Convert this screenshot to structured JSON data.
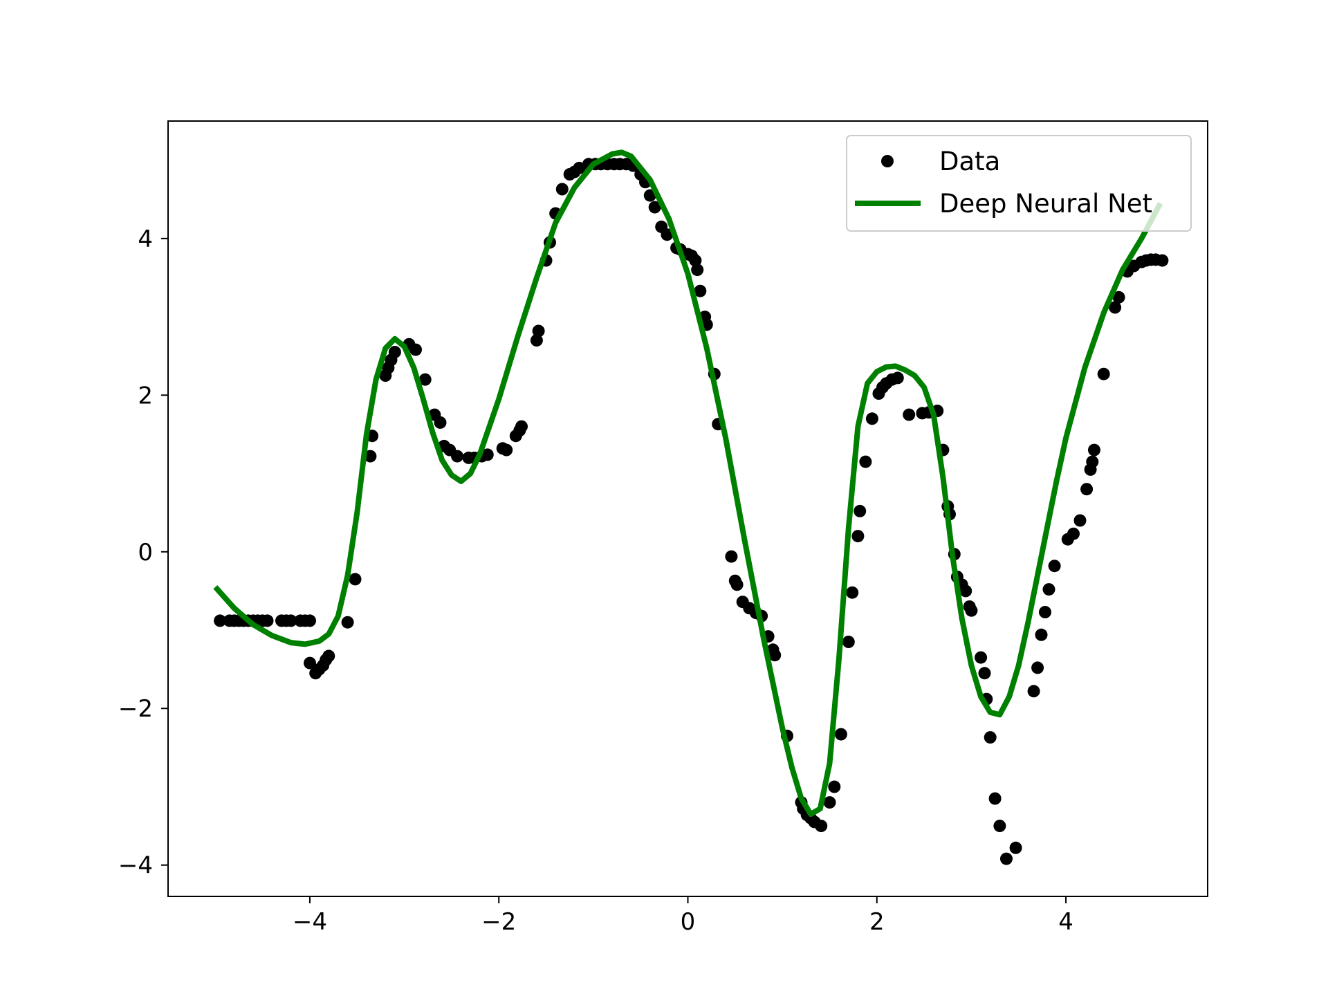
{
  "chart_data": {
    "type": "scatter",
    "title": "",
    "xlabel": "",
    "ylabel": "",
    "xlim": [
      -5.5,
      5.5
    ],
    "ylim": [
      -4.4,
      5.5
    ],
    "xticks": [
      -4,
      -2,
      0,
      2,
      4
    ],
    "yticks": [
      -4,
      -2,
      0,
      2,
      4
    ],
    "xtick_labels": [
      "−4",
      "−2",
      "0",
      "2",
      "4"
    ],
    "ytick_labels": [
      "−4",
      "−2",
      "0",
      "2",
      "4"
    ],
    "grid": false,
    "legend_position": "top-right",
    "series": [
      {
        "name": "Data",
        "kind": "scatter",
        "color": "#000000",
        "points": [
          [
            -4.95,
            -0.88
          ],
          [
            -4.85,
            -0.88
          ],
          [
            -4.8,
            -0.88
          ],
          [
            -4.75,
            -0.88
          ],
          [
            -4.7,
            -0.88
          ],
          [
            -4.65,
            -0.88
          ],
          [
            -4.6,
            -0.88
          ],
          [
            -4.55,
            -0.88
          ],
          [
            -4.5,
            -0.88
          ],
          [
            -4.45,
            -0.88
          ],
          [
            -4.3,
            -0.88
          ],
          [
            -4.25,
            -0.88
          ],
          [
            -4.2,
            -0.88
          ],
          [
            -4.1,
            -0.88
          ],
          [
            -4.05,
            -0.88
          ],
          [
            -4.0,
            -0.88
          ],
          [
            -4.0,
            -1.42
          ],
          [
            -3.94,
            -1.55
          ],
          [
            -3.9,
            -1.5
          ],
          [
            -3.86,
            -1.45
          ],
          [
            -3.83,
            -1.38
          ],
          [
            -3.8,
            -1.33
          ],
          [
            -3.6,
            -0.9
          ],
          [
            -3.52,
            -0.35
          ],
          [
            -3.36,
            1.22
          ],
          [
            -3.34,
            1.48
          ],
          [
            -3.2,
            2.25
          ],
          [
            -3.17,
            2.35
          ],
          [
            -3.14,
            2.45
          ],
          [
            -3.1,
            2.55
          ],
          [
            -2.95,
            2.65
          ],
          [
            -2.88,
            2.58
          ],
          [
            -2.78,
            2.2
          ],
          [
            -2.68,
            1.75
          ],
          [
            -2.62,
            1.65
          ],
          [
            -2.58,
            1.35
          ],
          [
            -2.52,
            1.3
          ],
          [
            -2.44,
            1.22
          ],
          [
            -2.32,
            1.2
          ],
          [
            -2.26,
            1.2
          ],
          [
            -2.18,
            1.22
          ],
          [
            -2.12,
            1.24
          ],
          [
            -1.96,
            1.32
          ],
          [
            -1.92,
            1.3
          ],
          [
            -1.82,
            1.48
          ],
          [
            -1.78,
            1.55
          ],
          [
            -1.76,
            1.6
          ],
          [
            -1.6,
            2.7
          ],
          [
            -1.58,
            2.82
          ],
          [
            -1.5,
            3.72
          ],
          [
            -1.46,
            3.95
          ],
          [
            -1.4,
            4.32
          ],
          [
            -1.33,
            4.63
          ],
          [
            -1.25,
            4.82
          ],
          [
            -1.2,
            4.85
          ],
          [
            -1.15,
            4.9
          ],
          [
            -1.05,
            4.95
          ],
          [
            -0.98,
            4.95
          ],
          [
            -0.92,
            4.95
          ],
          [
            -0.85,
            4.95
          ],
          [
            -0.78,
            4.95
          ],
          [
            -0.72,
            4.95
          ],
          [
            -0.65,
            4.95
          ],
          [
            -0.58,
            4.93
          ],
          [
            -0.5,
            4.82
          ],
          [
            -0.45,
            4.72
          ],
          [
            -0.4,
            4.55
          ],
          [
            -0.35,
            4.4
          ],
          [
            -0.28,
            4.15
          ],
          [
            -0.22,
            4.05
          ],
          [
            -0.12,
            3.88
          ],
          [
            -0.08,
            3.86
          ],
          [
            0.0,
            3.8
          ],
          [
            0.04,
            3.78
          ],
          [
            0.08,
            3.72
          ],
          [
            0.1,
            3.6
          ],
          [
            0.13,
            3.33
          ],
          [
            0.18,
            3.0
          ],
          [
            0.2,
            2.9
          ],
          [
            0.28,
            2.27
          ],
          [
            0.32,
            1.63
          ],
          [
            0.46,
            -0.06
          ],
          [
            0.5,
            -0.37
          ],
          [
            0.52,
            -0.42
          ],
          [
            0.58,
            -0.64
          ],
          [
            0.65,
            -0.72
          ],
          [
            0.72,
            -0.78
          ],
          [
            0.78,
            -0.82
          ],
          [
            0.85,
            -1.08
          ],
          [
            0.9,
            -1.25
          ],
          [
            0.92,
            -1.32
          ],
          [
            1.05,
            -2.35
          ],
          [
            1.2,
            -3.2
          ],
          [
            1.22,
            -3.28
          ],
          [
            1.26,
            -3.36
          ],
          [
            1.3,
            -3.4
          ],
          [
            1.34,
            -3.45
          ],
          [
            1.41,
            -3.5
          ],
          [
            1.5,
            -3.2
          ],
          [
            1.55,
            -3.0
          ],
          [
            1.62,
            -2.33
          ],
          [
            1.7,
            -1.15
          ],
          [
            1.74,
            -0.52
          ],
          [
            1.8,
            0.2
          ],
          [
            1.82,
            0.52
          ],
          [
            1.88,
            1.15
          ],
          [
            1.95,
            1.7
          ],
          [
            2.02,
            2.02
          ],
          [
            2.06,
            2.1
          ],
          [
            2.1,
            2.15
          ],
          [
            2.16,
            2.2
          ],
          [
            2.22,
            2.22
          ],
          [
            2.34,
            1.75
          ],
          [
            2.48,
            1.77
          ],
          [
            2.55,
            1.78
          ],
          [
            2.64,
            1.8
          ],
          [
            2.7,
            1.3
          ],
          [
            2.75,
            0.58
          ],
          [
            2.77,
            0.48
          ],
          [
            2.82,
            -0.03
          ],
          [
            2.85,
            -0.32
          ],
          [
            2.9,
            -0.42
          ],
          [
            2.94,
            -0.5
          ],
          [
            2.98,
            -0.7
          ],
          [
            3.0,
            -0.75
          ],
          [
            3.1,
            -1.35
          ],
          [
            3.14,
            -1.55
          ],
          [
            3.16,
            -1.88
          ],
          [
            3.2,
            -2.37
          ],
          [
            3.25,
            -3.15
          ],
          [
            3.3,
            -3.5
          ],
          [
            3.37,
            -3.92
          ],
          [
            3.47,
            -3.78
          ],
          [
            3.66,
            -1.78
          ],
          [
            3.7,
            -1.48
          ],
          [
            3.74,
            -1.06
          ],
          [
            3.78,
            -0.77
          ],
          [
            3.82,
            -0.48
          ],
          [
            3.88,
            -0.18
          ],
          [
            4.02,
            0.16
          ],
          [
            4.08,
            0.23
          ],
          [
            4.15,
            0.4
          ],
          [
            4.22,
            0.8
          ],
          [
            4.26,
            1.05
          ],
          [
            4.28,
            1.15
          ],
          [
            4.3,
            1.3
          ],
          [
            4.4,
            2.27
          ],
          [
            4.52,
            3.12
          ],
          [
            4.56,
            3.25
          ],
          [
            4.65,
            3.58
          ],
          [
            4.72,
            3.65
          ],
          [
            4.8,
            3.7
          ],
          [
            4.85,
            3.72
          ],
          [
            4.9,
            3.73
          ],
          [
            4.95,
            3.73
          ],
          [
            5.02,
            3.72
          ]
        ]
      },
      {
        "name": "Deep Neural Net",
        "kind": "line",
        "color": "#008000",
        "points": [
          [
            -5.0,
            -0.45
          ],
          [
            -4.8,
            -0.72
          ],
          [
            -4.6,
            -0.93
          ],
          [
            -4.4,
            -1.07
          ],
          [
            -4.2,
            -1.16
          ],
          [
            -4.05,
            -1.18
          ],
          [
            -3.9,
            -1.14
          ],
          [
            -3.8,
            -1.05
          ],
          [
            -3.7,
            -0.82
          ],
          [
            -3.6,
            -0.3
          ],
          [
            -3.5,
            0.5
          ],
          [
            -3.4,
            1.5
          ],
          [
            -3.3,
            2.2
          ],
          [
            -3.2,
            2.6
          ],
          [
            -3.1,
            2.72
          ],
          [
            -3.0,
            2.62
          ],
          [
            -2.9,
            2.35
          ],
          [
            -2.8,
            1.95
          ],
          [
            -2.7,
            1.52
          ],
          [
            -2.6,
            1.17
          ],
          [
            -2.5,
            0.98
          ],
          [
            -2.4,
            0.9
          ],
          [
            -2.3,
            1.0
          ],
          [
            -2.2,
            1.25
          ],
          [
            -2.0,
            1.95
          ],
          [
            -1.8,
            2.75
          ],
          [
            -1.6,
            3.5
          ],
          [
            -1.4,
            4.2
          ],
          [
            -1.2,
            4.65
          ],
          [
            -1.0,
            4.95
          ],
          [
            -0.8,
            5.08
          ],
          [
            -0.7,
            5.1
          ],
          [
            -0.6,
            5.05
          ],
          [
            -0.4,
            4.75
          ],
          [
            -0.2,
            4.25
          ],
          [
            0.0,
            3.55
          ],
          [
            0.2,
            2.6
          ],
          [
            0.4,
            1.45
          ],
          [
            0.6,
            0.15
          ],
          [
            0.8,
            -1.1
          ],
          [
            1.0,
            -2.25
          ],
          [
            1.1,
            -2.75
          ],
          [
            1.2,
            -3.15
          ],
          [
            1.3,
            -3.35
          ],
          [
            1.4,
            -3.28
          ],
          [
            1.5,
            -2.7
          ],
          [
            1.6,
            -1.35
          ],
          [
            1.7,
            0.3
          ],
          [
            1.8,
            1.6
          ],
          [
            1.9,
            2.15
          ],
          [
            2.0,
            2.3
          ],
          [
            2.1,
            2.36
          ],
          [
            2.2,
            2.37
          ],
          [
            2.3,
            2.32
          ],
          [
            2.4,
            2.25
          ],
          [
            2.5,
            2.1
          ],
          [
            2.6,
            1.75
          ],
          [
            2.7,
            0.95
          ],
          [
            2.8,
            -0.05
          ],
          [
            2.9,
            -0.85
          ],
          [
            3.0,
            -1.45
          ],
          [
            3.1,
            -1.85
          ],
          [
            3.2,
            -2.05
          ],
          [
            3.3,
            -2.08
          ],
          [
            3.4,
            -1.85
          ],
          [
            3.5,
            -1.45
          ],
          [
            3.6,
            -0.9
          ],
          [
            3.7,
            -0.3
          ],
          [
            3.8,
            0.3
          ],
          [
            3.9,
            0.9
          ],
          [
            4.0,
            1.45
          ],
          [
            4.2,
            2.35
          ],
          [
            4.4,
            3.05
          ],
          [
            4.6,
            3.6
          ],
          [
            4.8,
            4.0
          ],
          [
            5.0,
            4.45
          ]
        ]
      }
    ],
    "legend": {
      "entries": [
        "Data",
        "Deep Neural Net"
      ]
    }
  }
}
